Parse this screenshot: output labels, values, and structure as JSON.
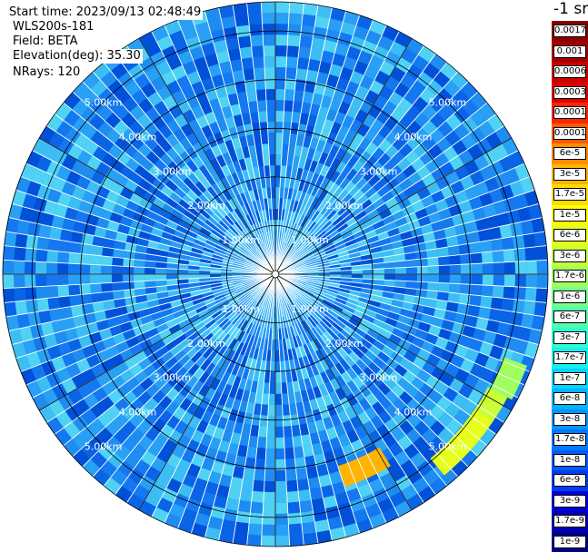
{
  "header": {
    "start_time": "Start time: 2023/09/13 02:48:49",
    "device": "WLS200s-181",
    "field": "Field: BETA",
    "elevation": "Elevation(deg): 35.30",
    "nrays": "NRays: 120"
  },
  "colorbar": {
    "title": "-1 sr",
    "entries": [
      {
        "label": "0.0017",
        "color": "#8b0000"
      },
      {
        "label": "0.001",
        "color": "#a50000"
      },
      {
        "label": "0.0006",
        "color": "#c80000"
      },
      {
        "label": "0.0003",
        "color": "#e00000"
      },
      {
        "label": "0.00017",
        "color": "#ff2400"
      },
      {
        "label": "0.0001",
        "color": "#ff5a00"
      },
      {
        "label": "6e-5",
        "color": "#ff8c00"
      },
      {
        "label": "3e-5",
        "color": "#ffb400"
      },
      {
        "label": "1.7e-5",
        "color": "#ffdc00"
      },
      {
        "label": "1e-5",
        "color": "#ffff00"
      },
      {
        "label": "6e-6",
        "color": "#e6ff1a"
      },
      {
        "label": "3e-6",
        "color": "#c8ff37"
      },
      {
        "label": "1.7e-6",
        "color": "#a0ff5f"
      },
      {
        "label": "1e-6",
        "color": "#78ff87"
      },
      {
        "label": "6e-7",
        "color": "#50ffaf"
      },
      {
        "label": "3e-7",
        "color": "#2dffd2"
      },
      {
        "label": "1.7e-7",
        "color": "#14f0f0"
      },
      {
        "label": "1e-7",
        "color": "#00d4ff"
      },
      {
        "label": "6e-8",
        "color": "#00b4ff"
      },
      {
        "label": "3e-8",
        "color": "#0096ff"
      },
      {
        "label": "1.7e-8",
        "color": "#0078ff"
      },
      {
        "label": "1e-8",
        "color": "#005aff"
      },
      {
        "label": "6e-9",
        "color": "#003cf0"
      },
      {
        "label": "3e-9",
        "color": "#0000dc"
      },
      {
        "label": "1.7e-9",
        "color": "#0000b4"
      },
      {
        "label": "1e-9",
        "color": "#00008b"
      }
    ]
  },
  "ppi": {
    "max_range_km": 5.6,
    "range_rings_km": [
      1,
      2,
      3,
      4,
      5
    ],
    "ring_labels": [
      "1.00km",
      "2.00km",
      "3.00km",
      "4.00km",
      "5.00km"
    ],
    "spoke_step_deg": 30,
    "ray_count": 120,
    "background_color": "#1e8cf0",
    "cell_colors": [
      "#0a64e6",
      "#1478f0",
      "#1e8cf0",
      "#28a0f5",
      "#3cbef5",
      "#50d2f5",
      "#0050d8"
    ],
    "hotspots": [
      {
        "label": "6e-6",
        "color": "#e6ff1a",
        "range_km": [
          4.95,
          5.4
        ],
        "azimuth_deg": [
          124,
          140
        ]
      },
      {
        "label": "3e-6",
        "color": "#c8ff37",
        "range_km": [
          4.95,
          5.4
        ],
        "azimuth_deg": [
          118,
          124
        ]
      },
      {
        "label": "1.7e-6",
        "color": "#a0ff5f",
        "range_km": [
          5.0,
          5.5
        ],
        "azimuth_deg": [
          110,
          118
        ]
      },
      {
        "label": "0.0001",
        "color": "#ff5a00",
        "range_km": [
          4.25,
          4.6
        ],
        "azimuth_deg": [
          152,
          161
        ]
      },
      {
        "label": "3e-5",
        "color": "#ffb400",
        "range_km": [
          4.15,
          4.6
        ],
        "azimuth_deg": [
          149,
          162
        ]
      }
    ]
  }
}
